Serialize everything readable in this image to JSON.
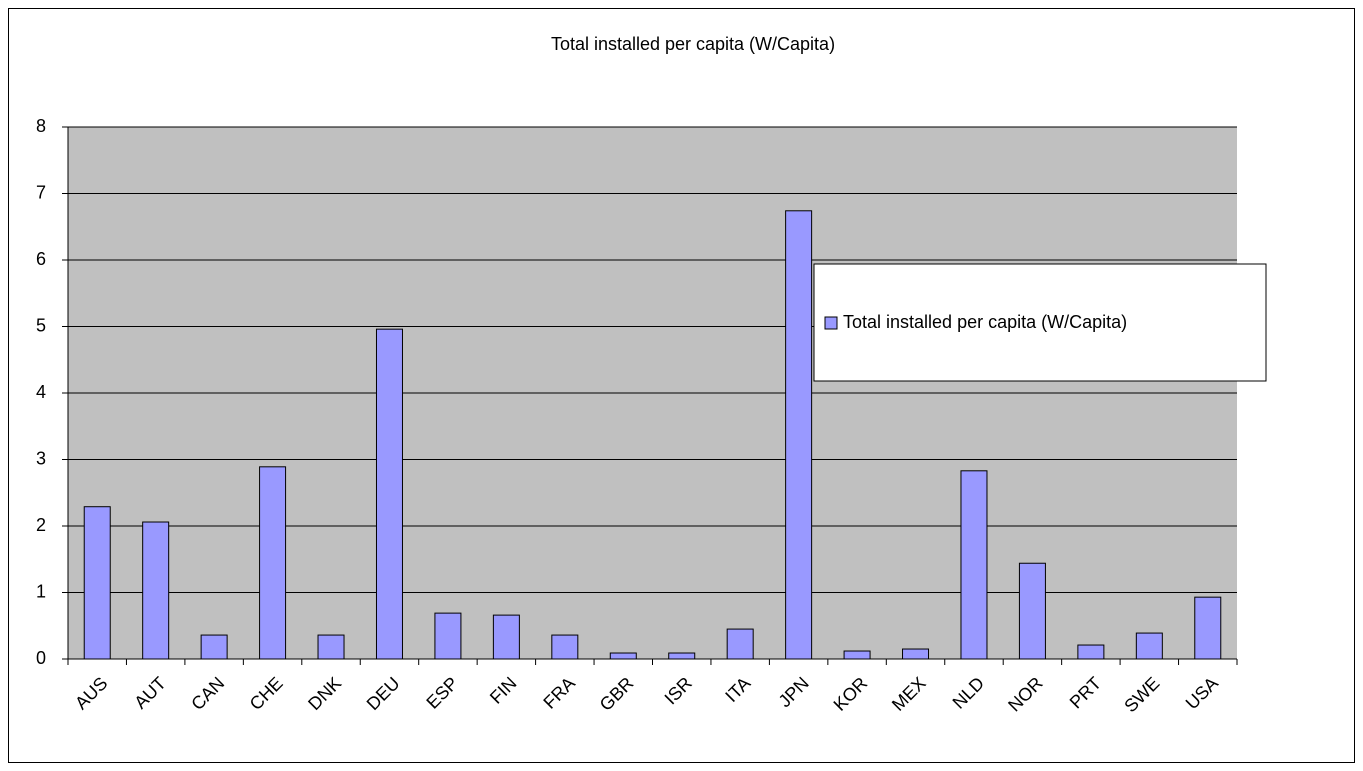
{
  "chart_data": {
    "type": "bar",
    "title": "Total installed per capita (W/Capita)",
    "categories": [
      "AUS",
      "AUT",
      "CAN",
      "CHE",
      "DNK",
      "DEU",
      "ESP",
      "FIN",
      "FRA",
      "GBR",
      "ISR",
      "ITA",
      "JPN",
      "KOR",
      "MEX",
      "NLD",
      "NOR",
      "PRT",
      "SWE",
      "USA"
    ],
    "series": [
      {
        "name": "Total installed per capita (W/Capita)",
        "color": "#9999ff",
        "values": [
          2.29,
          2.06,
          0.36,
          2.89,
          0.36,
          4.96,
          0.69,
          0.66,
          0.36,
          0.09,
          0.09,
          0.45,
          6.74,
          0.12,
          0.15,
          2.83,
          1.44,
          0.21,
          0.39,
          0.93
        ]
      }
    ],
    "ylim": [
      0,
      8
    ],
    "yticks": [
      0,
      1,
      2,
      3,
      4,
      5,
      6,
      7,
      8
    ],
    "grid": true,
    "legend": "right"
  }
}
